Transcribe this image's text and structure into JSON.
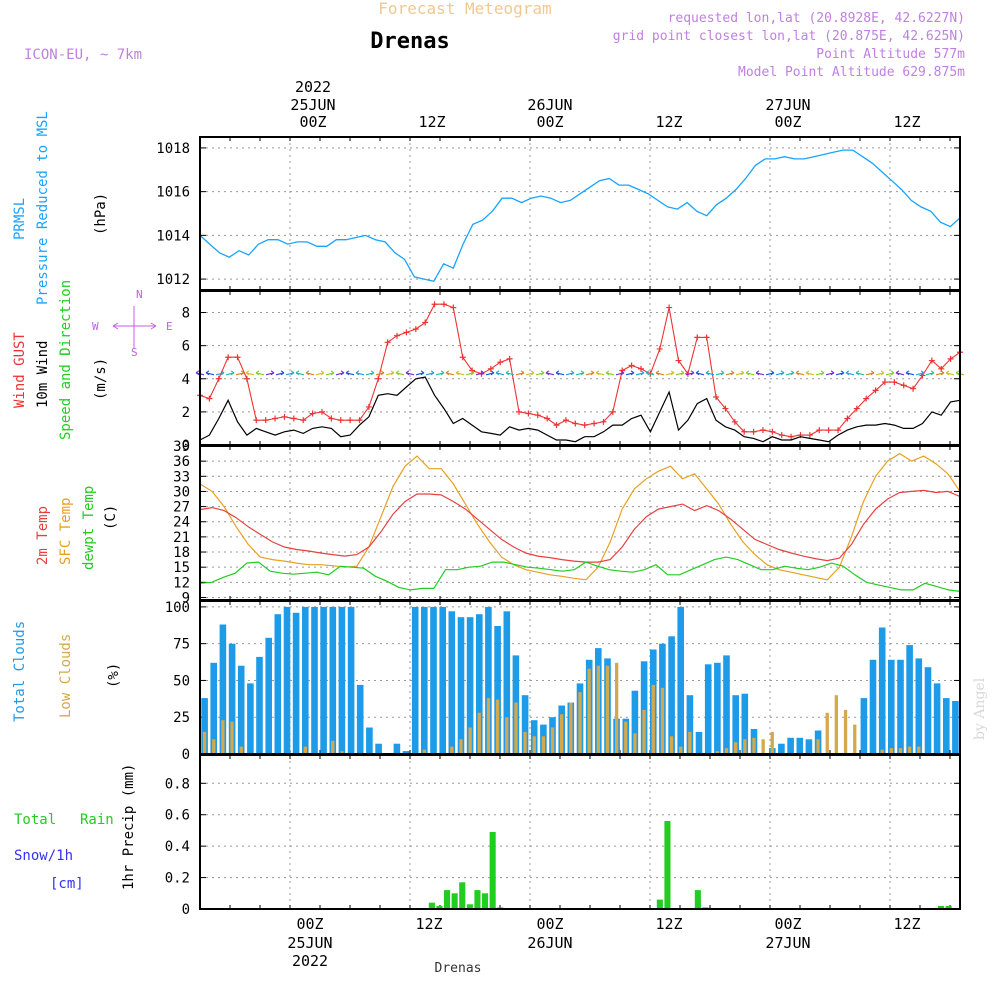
{
  "header": {
    "title": "Forecast Meteogram",
    "location": "Drenas",
    "model": "ICON-EU, ~ 7km",
    "requested": "requested lon,lat (20.8928E, 42.6227N)",
    "grid_point": "grid point closest lon,lat (20.875E, 42.625N)",
    "point_altitude": "Point Altitude 577m",
    "model_altitude": "Model Point Altitude 629.875m",
    "credit": "by Angel",
    "footer_location": "Drenas"
  },
  "time_axis": {
    "top_labels": [
      "00Z",
      "12Z",
      "00Z",
      "12Z",
      "00Z",
      "12Z"
    ],
    "top_dates": [
      "25JUN",
      "26JUN",
      "27JUN"
    ],
    "year": "2022",
    "bottom_labels": [
      "00Z",
      "12Z",
      "00Z",
      "12Z",
      "00Z",
      "12Z"
    ],
    "bottom_dates": [
      "25JUN",
      "26JUN",
      "27JUN"
    ]
  },
  "panel_labels": {
    "pressure": [
      "PRMSL",
      "Pressure Reduced to MSL",
      "(hPa)"
    ],
    "wind": [
      "Wind GUST",
      "10m Wind",
      "Speed and Direction",
      "(m/s)"
    ],
    "compass": [
      "N",
      "E",
      "S",
      "W"
    ],
    "temp": [
      "2m Temp",
      "SFC Temp",
      "dewpt Temp",
      "(C)"
    ],
    "clouds": [
      "Total Clouds",
      "Low Clouds",
      "(%)"
    ],
    "precip": [
      "Total",
      "Rain",
      "Snow/1h",
      "[cm]",
      "1hr Precip (mm)"
    ]
  },
  "colors": {
    "pressure": "#1aa3ff",
    "gust": "#ee3333",
    "wind": "#000000",
    "temp2m": "#e84040",
    "sfc": "#e8a020",
    "dewpt": "#22cc22",
    "total_clouds": "#1e9be8",
    "low_clouds": "#d4a84c",
    "rain": "#22cc22",
    "snow": "#3333ee",
    "header": "#c080e0"
  },
  "chart_data": [
    {
      "type": "line",
      "name": "pressure",
      "x_units": "hours from 2022-06-24 15Z",
      "ylabel": "(hPa)",
      "ylim": [
        1011.5,
        1018.5
      ],
      "yticks": [
        1012,
        1014,
        1016,
        1018
      ],
      "series": [
        {
          "name": "PRMSL",
          "values": [
            1014.0,
            1013.6,
            1013.2,
            1013.0,
            1013.3,
            1013.1,
            1013.6,
            1013.8,
            1013.8,
            1013.6,
            1013.7,
            1013.7,
            1013.5,
            1013.5,
            1013.8,
            1013.8,
            1013.9,
            1014.0,
            1013.8,
            1013.7,
            1013.2,
            1012.9,
            1012.1,
            1012.0,
            1011.9,
            1012.7,
            1012.5,
            1013.6,
            1014.5,
            1014.7,
            1015.1,
            1015.7,
            1015.7,
            1015.5,
            1015.7,
            1015.8,
            1015.7,
            1015.5,
            1015.6,
            1015.9,
            1016.2,
            1016.5,
            1016.6,
            1016.3,
            1016.3,
            1016.1,
            1015.9,
            1015.6,
            1015.3,
            1015.2,
            1015.5,
            1015.1,
            1014.9,
            1015.4,
            1015.7,
            1016.1,
            1016.6,
            1017.2,
            1017.5,
            1017.5,
            1017.6,
            1017.5,
            1017.5,
            1017.6,
            1017.7,
            1017.8,
            1017.9,
            1017.9,
            1017.6,
            1017.3,
            1016.9,
            1016.5,
            1016.1,
            1015.6,
            1015.3,
            1015.1,
            1014.6,
            1014.4,
            1014.8
          ]
        }
      ]
    },
    {
      "type": "line",
      "name": "wind",
      "x_units": "hours from 2022-06-24 15Z",
      "ylabel": "(m/s)",
      "ylim": [
        0,
        9.3
      ],
      "yticks": [
        0,
        2,
        4,
        6,
        8
      ],
      "series": [
        {
          "name": "Wind GUST",
          "values": [
            3.0,
            2.8,
            4.0,
            5.3,
            5.3,
            4.0,
            1.5,
            1.5,
            1.6,
            1.7,
            1.6,
            1.5,
            1.9,
            2.0,
            1.6,
            1.5,
            1.5,
            1.5,
            2.3,
            4.0,
            6.2,
            6.6,
            6.8,
            7.0,
            7.4,
            8.5,
            8.5,
            8.3,
            5.3,
            4.5,
            4.3,
            4.6,
            5.0,
            5.2,
            2.0,
            1.9,
            1.8,
            1.6,
            1.2,
            1.5,
            1.3,
            1.2,
            1.3,
            1.4,
            2.0,
            4.5,
            4.8,
            4.6,
            4.3,
            5.8,
            8.3,
            5.1,
            4.3,
            6.5,
            6.5,
            2.9,
            2.2,
            1.4,
            0.8,
            0.8,
            0.9,
            0.8,
            0.6,
            0.5,
            0.6,
            0.6,
            0.9,
            0.9,
            0.9,
            1.6,
            2.2,
            2.8,
            3.3,
            3.8,
            3.8,
            3.6,
            3.4,
            4.2,
            5.1,
            4.6,
            5.2,
            5.6
          ]
        },
        {
          "name": "10m Wind",
          "values": [
            0.3,
            0.6,
            1.6,
            2.7,
            1.4,
            0.6,
            1.0,
            0.8,
            0.6,
            0.8,
            0.9,
            0.7,
            1.0,
            1.1,
            1.0,
            0.5,
            0.6,
            1.2,
            1.7,
            3.0,
            3.1,
            3.0,
            3.5,
            4.0,
            4.1,
            3.0,
            2.2,
            1.3,
            1.6,
            1.2,
            0.8,
            0.7,
            0.6,
            1.1,
            0.9,
            1.0,
            0.9,
            0.6,
            0.3,
            0.3,
            0.2,
            0.5,
            0.5,
            0.8,
            1.2,
            1.2,
            1.6,
            1.8,
            0.8,
            2.0,
            3.2,
            0.9,
            1.5,
            2.5,
            2.8,
            1.5,
            1.1,
            0.9,
            0.5,
            0.4,
            0.2,
            0.5,
            0.3,
            0.3,
            0.5,
            0.4,
            0.3,
            0.2,
            0.6,
            0.9,
            1.1,
            1.2,
            1.2,
            1.3,
            1.2,
            1.0,
            1.0,
            1.3,
            2.0,
            1.8,
            2.6,
            2.7
          ]
        }
      ]
    },
    {
      "type": "line",
      "name": "temperature",
      "x_units": "hours from 2022-06-24 15Z",
      "ylabel": "(C)",
      "ylim": [
        8.5,
        39
      ],
      "yticks": [
        9,
        12,
        15,
        18,
        21,
        24,
        27,
        30,
        33,
        36,
        39
      ],
      "series": [
        {
          "name": "2m Temp",
          "values": [
            26.4,
            26.8,
            26.2,
            24.8,
            23.0,
            21.5,
            20.0,
            19.0,
            18.5,
            18.2,
            17.8,
            17.5,
            17.2,
            17.5,
            19.0,
            22.0,
            25.5,
            28.0,
            29.5,
            29.5,
            29.3,
            28.0,
            26.5,
            24.5,
            22.5,
            20.5,
            19.0,
            17.8,
            17.2,
            16.9,
            16.5,
            16.2,
            16.0,
            16.0,
            16.5,
            19.0,
            22.5,
            25.0,
            26.5,
            27.0,
            27.5,
            26.2,
            27.2,
            26.2,
            24.5,
            22.5,
            20.5,
            19.5,
            18.5,
            17.8,
            17.2,
            16.7,
            16.3,
            16.8,
            19.5,
            23.5,
            26.5,
            28.5,
            29.8,
            30.0,
            30.2,
            29.8,
            30.0,
            29.0
          ]
        },
        {
          "name": "SFC Temp",
          "values": [
            31.5,
            30.0,
            27.0,
            23.0,
            19.5,
            17.0,
            16.5,
            16.2,
            15.8,
            15.5,
            15.5,
            15.3,
            15.0,
            15.2,
            19.0,
            25.0,
            31.0,
            35.0,
            37.0,
            34.5,
            34.5,
            31.5,
            27.5,
            23.5,
            20.0,
            17.0,
            15.5,
            14.5,
            14.0,
            13.5,
            13.2,
            12.8,
            12.5,
            15.0,
            20.0,
            26.5,
            30.5,
            32.5,
            34.0,
            35.0,
            32.5,
            33.5,
            30.5,
            27.5,
            23.5,
            20.0,
            17.5,
            15.5,
            14.5,
            14.0,
            13.5,
            13.0,
            12.5,
            15.0,
            21.0,
            28.0,
            33.0,
            36.0,
            37.5,
            36.0,
            37.0,
            35.5,
            33.5,
            30.0
          ]
        },
        {
          "name": "dewpt Temp",
          "values": [
            11.8,
            12.0,
            13.0,
            13.8,
            15.8,
            16.0,
            14.2,
            13.8,
            13.6,
            13.8,
            14.0,
            13.5,
            15.2,
            15.0,
            14.8,
            13.2,
            12.2,
            11.0,
            10.5,
            10.8,
            10.8,
            14.5,
            14.5,
            15.0,
            15.2,
            16.0,
            16.0,
            15.5,
            15.0,
            14.8,
            14.5,
            14.2,
            14.5,
            16.0,
            15.2,
            14.5,
            14.2,
            14.0,
            14.5,
            15.5,
            13.5,
            13.5,
            14.5,
            15.5,
            16.5,
            17.0,
            16.5,
            15.5,
            14.5,
            14.5,
            15.2,
            14.8,
            14.5,
            15.0,
            15.8,
            15.2,
            13.5,
            12.0,
            11.5,
            11.0,
            10.5,
            10.5,
            11.8,
            11.2,
            10.5,
            10.2
          ]
        }
      ]
    },
    {
      "type": "bar",
      "name": "clouds",
      "x_units": "hours from 2022-06-24 15Z",
      "ylabel": "(%)",
      "ylim": [
        0,
        104
      ],
      "yticks": [
        0,
        25,
        50,
        75,
        100
      ],
      "series": [
        {
          "name": "Total Clouds",
          "values": [
            38,
            62,
            88,
            75,
            60,
            48,
            66,
            79,
            95,
            100,
            96,
            100,
            100,
            100,
            100,
            100,
            100,
            47,
            18,
            7,
            0,
            7,
            2,
            100,
            100,
            100,
            100,
            97,
            93,
            93,
            95,
            100,
            87,
            97,
            67,
            40,
            23,
            20,
            25,
            33,
            35,
            48,
            64,
            72,
            65,
            24,
            24,
            43,
            63,
            71,
            75,
            80,
            100,
            40,
            15,
            61,
            62,
            67,
            40,
            41,
            17,
            0,
            4,
            7,
            11,
            11,
            10,
            16,
            0,
            0,
            0,
            0,
            38,
            64,
            86,
            64,
            64,
            74,
            65,
            59,
            48,
            38,
            36
          ]
        },
        {
          "name": "Low Clouds",
          "values": [
            15,
            10,
            23,
            22,
            5,
            0,
            0,
            0,
            0,
            0,
            0,
            5,
            0,
            0,
            9,
            2,
            0,
            0,
            0,
            0,
            0,
            0,
            0,
            0,
            3,
            0,
            0,
            5,
            10,
            18,
            28,
            38,
            37,
            25,
            35,
            15,
            12,
            12,
            18,
            27,
            35,
            42,
            58,
            60,
            60,
            62,
            22,
            14,
            30,
            47,
            45,
            12,
            5,
            15,
            0,
            0,
            2,
            4,
            8,
            10,
            11,
            10,
            15,
            0,
            0,
            0,
            0,
            10,
            28,
            40,
            30,
            20,
            0,
            0,
            3,
            4,
            4,
            5,
            5,
            0
          ]
        }
      ]
    },
    {
      "type": "bar",
      "name": "precipitation",
      "x_units": "hours from 2022-06-24 15Z",
      "ylabel": "1hr Precip (mm)",
      "ylim": [
        0,
        0.98
      ],
      "yticks": [
        0,
        0.2,
        0.4,
        0.6,
        0.8
      ],
      "series": [
        {
          "name": "Total Rain",
          "values": [
            0,
            0,
            0,
            0,
            0,
            0,
            0,
            0,
            0,
            0,
            0,
            0,
            0,
            0,
            0,
            0,
            0,
            0,
            0,
            0,
            0,
            0,
            0,
            0,
            0,
            0,
            0,
            0,
            0,
            0,
            0.04,
            0.02,
            0.12,
            0.1,
            0.17,
            0.03,
            0.12,
            0.1,
            0.49,
            0.01,
            0,
            0,
            0,
            0,
            0,
            0,
            0,
            0,
            0,
            0,
            0,
            0,
            0,
            0,
            0,
            0,
            0,
            0,
            0,
            0,
            0.06,
            0.56,
            0,
            0,
            0,
            0.12,
            0.01,
            0,
            0,
            0,
            0,
            0,
            0,
            0,
            0,
            0,
            0,
            0,
            0,
            0,
            0,
            0,
            0,
            0,
            0,
            0,
            0,
            0,
            0,
            0,
            0,
            0,
            0,
            0,
            0,
            0,
            0,
            0.02,
            0.02,
            0
          ]
        }
      ]
    }
  ]
}
